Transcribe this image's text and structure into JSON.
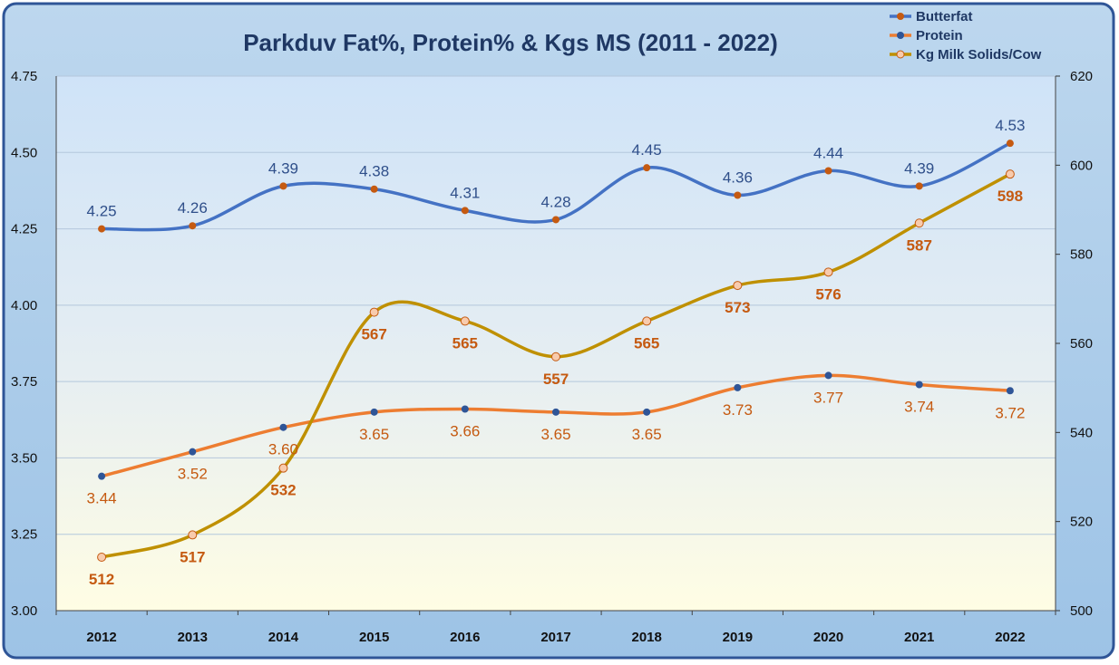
{
  "chart_data": {
    "type": "line",
    "title": "Parkduv Fat%, Protein% & Kgs MS (2011 - 2022)",
    "categories": [
      "2012",
      "2013",
      "2014",
      "2015",
      "2016",
      "2017",
      "2018",
      "2019",
      "2020",
      "2021",
      "2022"
    ],
    "y_left": {
      "ylim": [
        3.0,
        4.75
      ],
      "ticks": [
        "3.00",
        "3.25",
        "3.50",
        "3.75",
        "4.00",
        "4.25",
        "4.50",
        "4.75"
      ]
    },
    "y_right": {
      "ylim": [
        500,
        620
      ],
      "ticks": [
        "500",
        "520",
        "540",
        "560",
        "580",
        "600",
        "620"
      ]
    },
    "grid": true,
    "legend_position": "top-right",
    "series": [
      {
        "name": "Butterfat",
        "axis": "left",
        "values": [
          4.25,
          4.26,
          4.39,
          4.38,
          4.31,
          4.28,
          4.45,
          4.36,
          4.44,
          4.39,
          4.53
        ],
        "labels": [
          "4.25",
          "4.26",
          "4.39",
          "4.38",
          "4.31",
          "4.28",
          "4.45",
          "4.36",
          "4.44",
          "4.39",
          "4.53"
        ],
        "line_color": "#4472c4",
        "marker_color": "#c55a11",
        "label_color": "#2f4f8a"
      },
      {
        "name": "Protein",
        "axis": "left",
        "values": [
          3.44,
          3.52,
          3.6,
          3.65,
          3.66,
          3.65,
          3.65,
          3.73,
          3.77,
          3.74,
          3.72
        ],
        "labels": [
          "3.44",
          "3.52",
          "3.60",
          "3.65",
          "3.66",
          "3.65",
          "3.65",
          "3.73",
          "3.77",
          "3.74",
          "3.72"
        ],
        "line_color": "#ed7d31",
        "marker_color": "#2f5597",
        "label_color": "#c55a11"
      },
      {
        "name": "Kg Milk Solids/Cow",
        "axis": "right",
        "values": [
          512,
          517,
          532,
          567,
          565,
          557,
          565,
          573,
          576,
          587,
          598
        ],
        "labels": [
          "512",
          "517",
          "532",
          "567",
          "565",
          "557",
          "565",
          "573",
          "576",
          "587",
          "598"
        ],
        "line_color": "#bf9000",
        "marker_color": "#f8cbad",
        "label_color": "#c55a11"
      }
    ]
  },
  "colors": {
    "border": "#2f5597",
    "outer_bg_top": "#bdd7ee",
    "outer_bg_bottom": "#9dc3e6",
    "plot_bg_top": "#cfe3f8",
    "plot_bg_bottom": "#fffde4",
    "title": "#1f3864",
    "gridline": "#b4c7dc"
  }
}
